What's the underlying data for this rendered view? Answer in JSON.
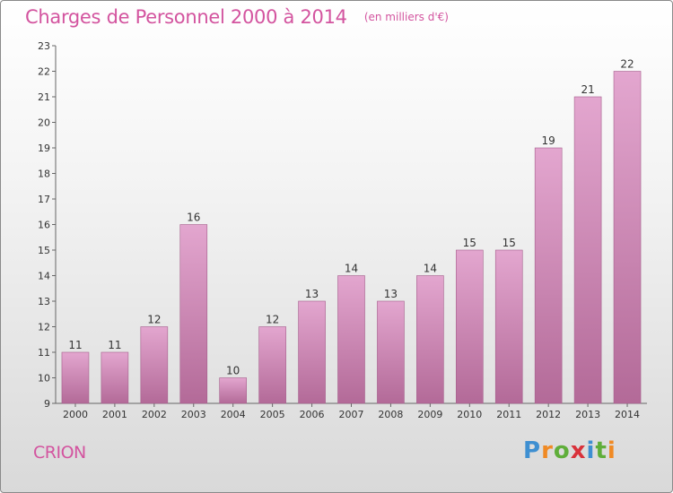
{
  "header": {
    "title": "Charges de Personnel 2000 à 2014",
    "unit": "(en milliers d'€)"
  },
  "footer": {
    "commune": "CRION",
    "brand": {
      "letters": [
        "P",
        "r",
        "o",
        "x",
        "i",
        "t",
        "i"
      ],
      "colors": [
        "#3e8fd1",
        "#f08a24",
        "#5fae3a",
        "#d9323b",
        "#3e8fd1",
        "#5fae3a",
        "#f08a24"
      ]
    }
  },
  "colors": {
    "accent": "#d3549f",
    "bar_top": "#e3a6cf",
    "bar_bottom": "#b36a98"
  },
  "chart_data": {
    "type": "bar",
    "categories": [
      "2000",
      "2001",
      "2002",
      "2003",
      "2004",
      "2005",
      "2006",
      "2007",
      "2008",
      "2009",
      "2010",
      "2011",
      "2012",
      "2013",
      "2014"
    ],
    "values": [
      11,
      11,
      12,
      16,
      10,
      12,
      13,
      14,
      13,
      14,
      15,
      15,
      19,
      21,
      22
    ],
    "data_labels": [
      "11",
      "11",
      "12",
      "16",
      "10",
      "12",
      "13",
      "14",
      "13",
      "14",
      "15",
      "15",
      "19",
      "21",
      "22"
    ],
    "ylim": [
      9,
      23
    ],
    "yticks": [
      9,
      10,
      11,
      12,
      13,
      14,
      15,
      16,
      17,
      18,
      19,
      20,
      21,
      22,
      23
    ],
    "title": "Charges de Personnel 2000 à 2014",
    "xlabel": "",
    "ylabel": "",
    "grid": false
  }
}
